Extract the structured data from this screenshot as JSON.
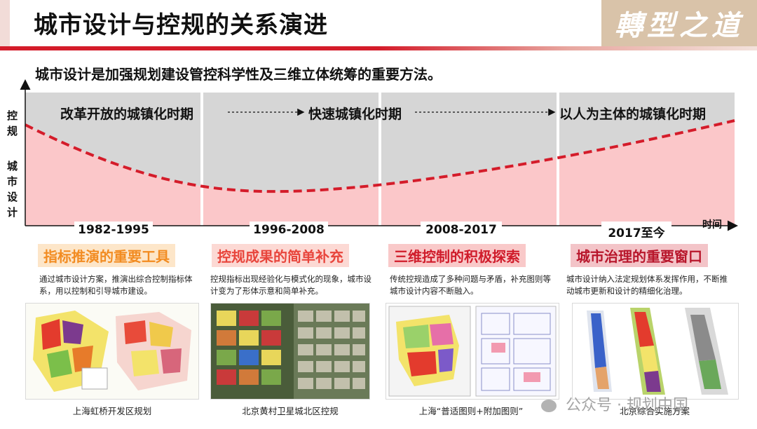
{
  "header": {
    "title": "城市设计与控规的关系演进",
    "brand": "轉型之道",
    "subtitle": "城市设计是加强规划建设管控科学性及三维立体统筹的重要方法。"
  },
  "chart": {
    "y_axis_top": "控规",
    "y_axis_bottom": "城市设计",
    "x_axis": "时间",
    "periods": [
      "改革开放的城镇化时期",
      "快速城镇化时期",
      "以人为主体的城镇化时期"
    ]
  },
  "stages": [
    {
      "years": "1982-1995",
      "title": "指标推演的重要工具",
      "title_color": "#f28c22",
      "title_bg": "#fde6c9",
      "description": "通过城市设计方案，推演出综合控制指标体系，用以控制和引导城市建设。",
      "caption": "上海虹桥开发区规划"
    },
    {
      "years": "1996-2008",
      "title": "控规成果的简单补充",
      "title_color": "#e8453c",
      "title_bg": "#fcd9d4",
      "description": "控规指标出现经验化与模式化的现象，城市设计变为了形体示意和简单补充。",
      "caption": "北京黄村卫星城北区控规"
    },
    {
      "years": "2008-2017",
      "title": "三维控制的积极探索",
      "title_color": "#d01c2b",
      "title_bg": "#f9c9c9",
      "description": "传统控规造成了多种问题与矛盾，补充图则等城市设计内容不断融入。",
      "caption": "上海“普适图则+附加图则”"
    },
    {
      "years": "2017至今",
      "title": "城市治理的重要窗口",
      "title_color": "#b8162b",
      "title_bg": "#f3c4c8",
      "description": "城市设计纳入法定规划体系发挥作用，不断推动城市更新和设计的精细化治理。",
      "caption": "北京综合实施方案"
    }
  ],
  "watermark": "公众号 · 规划中国"
}
